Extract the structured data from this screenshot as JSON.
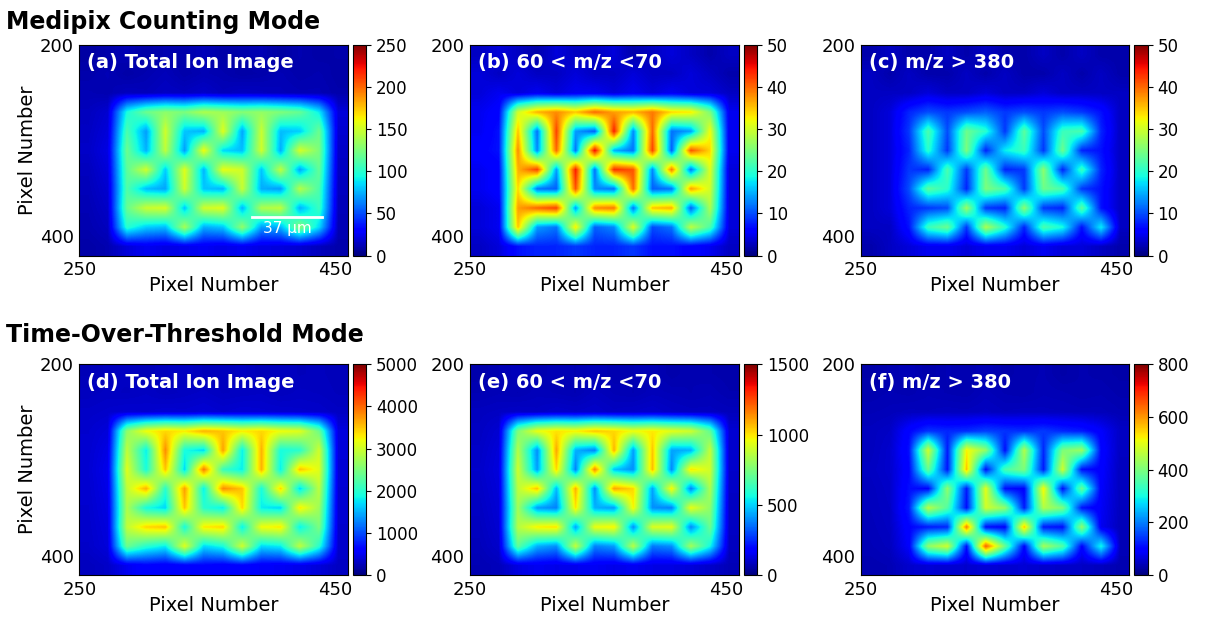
{
  "row_titles": [
    "Medipix Counting Mode",
    "Time-Over-Threshold Mode"
  ],
  "chart_data": [
    {
      "type": "heatmap",
      "title": "(a) Total Ion Image",
      "xlabel": "Pixel Number",
      "ylabel": "Pixel Number",
      "xlim": [
        250,
        460
      ],
      "ylim": [
        420,
        200
      ],
      "xticks": [
        250,
        450
      ],
      "yticks": [
        200,
        400
      ],
      "colorbar": {
        "range": [
          0,
          250
        ],
        "ticks": [
          0,
          50,
          100,
          150,
          200,
          250
        ]
      },
      "scale_bar": {
        "label": "37 µm",
        "x_start": 385,
        "x_end": 440,
        "y": 380
      },
      "cells": [
        [
          8,
          10,
          12,
          9,
          11,
          10,
          13,
          9,
          10,
          12,
          8,
          11,
          9,
          10
        ],
        [
          10,
          12,
          9,
          11,
          13,
          10,
          12,
          11,
          9,
          10,
          12,
          10,
          11,
          9
        ],
        [
          12,
          11,
          14,
          13,
          15,
          14,
          16,
          13,
          15,
          14,
          13,
          12,
          12,
          10
        ],
        [
          14,
          18,
          95,
          120,
          130,
          125,
          140,
          135,
          128,
          132,
          126,
          118,
          90,
          20
        ],
        [
          15,
          20,
          110,
          70,
          150,
          80,
          75,
          155,
          72,
          148,
          78,
          82,
          120,
          18
        ],
        [
          16,
          22,
          120,
          75,
          145,
          70,
          160,
          85,
          78,
          150,
          74,
          152,
          125,
          16
        ],
        [
          14,
          20,
          115,
          150,
          82,
          155,
          76,
          158,
          150,
          80,
          145,
          72,
          118,
          15
        ],
        [
          13,
          18,
          112,
          78,
          72,
          150,
          80,
          76,
          148,
          74,
          70,
          142,
          110,
          14
        ],
        [
          12,
          16,
          118,
          148,
          152,
          80,
          150,
          155,
          76,
          140,
          145,
          75,
          105,
          13
        ],
        [
          11,
          14,
          100,
          82,
          78,
          138,
          74,
          80,
          132,
          70,
          76,
          128,
          85,
          12
        ],
        [
          9,
          11,
          20,
          25,
          22,
          24,
          26,
          23,
          25,
          22,
          21,
          18,
          14,
          10
        ]
      ]
    },
    {
      "type": "heatmap",
      "title": "(b) 60 < m/z <70",
      "xlabel": "Pixel Number",
      "xlim": [
        250,
        460
      ],
      "ylim": [
        420,
        200
      ],
      "xticks": [
        250,
        450
      ],
      "yticks": [
        200,
        400
      ],
      "colorbar": {
        "range": [
          0,
          50
        ],
        "ticks": [
          0,
          10,
          20,
          30,
          40,
          50
        ]
      },
      "cells": [
        [
          3,
          4,
          3,
          2,
          4,
          3,
          3,
          4,
          2,
          3,
          4,
          3,
          2,
          3
        ],
        [
          4,
          3,
          4,
          3,
          3,
          4,
          3,
          3,
          4,
          3,
          3,
          4,
          3,
          2
        ],
        [
          4,
          5,
          4,
          5,
          4,
          5,
          5,
          4,
          5,
          4,
          5,
          4,
          4,
          3
        ],
        [
          5,
          6,
          30,
          36,
          38,
          35,
          40,
          37,
          36,
          39,
          34,
          33,
          25,
          5
        ],
        [
          5,
          7,
          35,
          12,
          42,
          14,
          11,
          44,
          13,
          40,
          12,
          14,
          32,
          5
        ],
        [
          6,
          7,
          38,
          13,
          40,
          12,
          45,
          15,
          12,
          42,
          11,
          41,
          34,
          5
        ],
        [
          5,
          6,
          36,
          42,
          14,
          44,
          12,
          43,
          41,
          13,
          39,
          12,
          31,
          4
        ],
        [
          5,
          6,
          34,
          12,
          11,
          41,
          13,
          12,
          40,
          11,
          12,
          37,
          30,
          4
        ],
        [
          4,
          5,
          37,
          40,
          42,
          14,
          38,
          39,
          12,
          35,
          36,
          11,
          28,
          4
        ],
        [
          4,
          5,
          35,
          14,
          12,
          33,
          11,
          13,
          31,
          10,
          12,
          29,
          22,
          4
        ],
        [
          3,
          4,
          7,
          8,
          8,
          9,
          8,
          8,
          9,
          7,
          7,
          6,
          5,
          3
        ]
      ]
    },
    {
      "type": "heatmap",
      "title": "(c) m/z > 380",
      "xlabel": "Pixel Number",
      "xlim": [
        250,
        460
      ],
      "ylim": [
        420,
        200
      ],
      "xticks": [
        250,
        450
      ],
      "yticks": [
        200,
        400
      ],
      "colorbar": {
        "range": [
          0,
          50
        ],
        "ticks": [
          0,
          10,
          20,
          30,
          40,
          50
        ]
      },
      "cells": [
        [
          2,
          3,
          2,
          2,
          3,
          2,
          3,
          2,
          2,
          3,
          2,
          3,
          2,
          2
        ],
        [
          3,
          2,
          3,
          2,
          2,
          3,
          2,
          3,
          2,
          2,
          3,
          2,
          3,
          2
        ],
        [
          3,
          3,
          3,
          4,
          3,
          3,
          4,
          3,
          3,
          4,
          3,
          3,
          3,
          3
        ],
        [
          3,
          4,
          8,
          10,
          9,
          10,
          11,
          9,
          10,
          9,
          10,
          9,
          7,
          3
        ],
        [
          3,
          4,
          9,
          22,
          10,
          24,
          20,
          9,
          23,
          10,
          21,
          22,
          8,
          3
        ],
        [
          3,
          4,
          8,
          20,
          9,
          25,
          8,
          18,
          21,
          9,
          24,
          8,
          7,
          3
        ],
        [
          3,
          4,
          9,
          8,
          22,
          9,
          24,
          8,
          9,
          26,
          8,
          21,
          8,
          3
        ],
        [
          3,
          4,
          10,
          23,
          20,
          8,
          25,
          22,
          9,
          24,
          22,
          9,
          7,
          3
        ],
        [
          3,
          4,
          8,
          9,
          10,
          27,
          9,
          8,
          26,
          9,
          8,
          23,
          7,
          3
        ],
        [
          3,
          3,
          7,
          21,
          24,
          9,
          28,
          20,
          8,
          22,
          19,
          7,
          18,
          3
        ],
        [
          2,
          3,
          4,
          5,
          5,
          4,
          5,
          5,
          4,
          5,
          4,
          4,
          3,
          2
        ]
      ]
    },
    {
      "type": "heatmap",
      "title": "(d) Total Ion Image",
      "xlabel": "Pixel Number",
      "ylabel": "Pixel Number",
      "xlim": [
        250,
        460
      ],
      "ylim": [
        420,
        200
      ],
      "xticks": [
        250,
        450
      ],
      "yticks": [
        200,
        400
      ],
      "colorbar": {
        "range": [
          0,
          5000
        ],
        "ticks": [
          0,
          1000,
          2000,
          3000,
          4000,
          5000
        ]
      },
      "cells": [
        [
          250,
          280,
          300,
          260,
          290,
          310,
          270,
          280,
          300,
          260,
          290,
          270,
          280,
          260
        ],
        [
          280,
          300,
          290,
          310,
          280,
          300,
          320,
          290,
          300,
          310,
          280,
          300,
          290,
          270
        ],
        [
          320,
          340,
          360,
          350,
          370,
          360,
          380,
          350,
          370,
          360,
          350,
          340,
          330,
          300
        ],
        [
          350,
          400,
          2600,
          3200,
          3400,
          3300,
          3600,
          3500,
          3300,
          3400,
          3200,
          3100,
          2400,
          420
        ],
        [
          360,
          450,
          2900,
          1800,
          3800,
          1900,
          1700,
          3700,
          1800,
          3600,
          1900,
          2000,
          3000,
          400
        ],
        [
          370,
          480,
          3100,
          1900,
          3500,
          1700,
          3900,
          2100,
          1800,
          3600,
          1800,
          3500,
          3100,
          380
        ],
        [
          360,
          460,
          2900,
          3600,
          2000,
          3700,
          1800,
          3800,
          3500,
          1900,
          3400,
          1700,
          2900,
          370
        ],
        [
          350,
          440,
          2800,
          1900,
          1700,
          3500,
          2000,
          1800,
          3400,
          1800,
          1700,
          3300,
          2700,
          360
        ],
        [
          340,
          420,
          2900,
          3400,
          3500,
          1900,
          3300,
          3400,
          1800,
          3200,
          3300,
          1800,
          2500,
          350
        ],
        [
          330,
          400,
          2400,
          2000,
          1800,
          3100,
          1700,
          1900,
          3000,
          1700,
          1800,
          2900,
          2000,
          340
        ],
        [
          280,
          320,
          500,
          600,
          550,
          580,
          620,
          560,
          590,
          540,
          520,
          470,
          400,
          300
        ]
      ]
    },
    {
      "type": "heatmap",
      "title": "(e) 60 < m/z <70",
      "xlabel": "Pixel Number",
      "xlim": [
        250,
        460
      ],
      "ylim": [
        420,
        200
      ],
      "xticks": [
        250,
        450
      ],
      "yticks": [
        200,
        400
      ],
      "colorbar": {
        "range": [
          0,
          1500
        ],
        "ticks": [
          0,
          500,
          1000,
          1500
        ]
      },
      "cells": [
        [
          60,
          70,
          80,
          65,
          75,
          70,
          80,
          65,
          70,
          75,
          60,
          70,
          65,
          60
        ],
        [
          70,
          75,
          70,
          80,
          75,
          70,
          85,
          75,
          70,
          80,
          75,
          70,
          75,
          65
        ],
        [
          85,
          90,
          95,
          90,
          100,
          95,
          100,
          90,
          95,
          100,
          90,
          85,
          85,
          80
        ],
        [
          90,
          110,
          750,
          950,
          1000,
          980,
          1050,
          1020,
          960,
          990,
          940,
          900,
          700,
          110
        ],
        [
          95,
          120,
          850,
          400,
          1100,
          450,
          380,
          1080,
          420,
          1050,
          430,
          450,
          880,
          100
        ],
        [
          100,
          125,
          900,
          420,
          1020,
          380,
          1150,
          480,
          400,
          1060,
          390,
          1000,
          900,
          100
        ],
        [
          95,
          120,
          860,
          1050,
          460,
          1080,
          400,
          1100,
          1020,
          430,
          980,
          380,
          840,
          95
        ],
        [
          90,
          115,
          820,
          420,
          380,
          1000,
          450,
          420,
          980,
          400,
          380,
          950,
          780,
          90
        ],
        [
          85,
          110,
          850,
          980,
          1000,
          430,
          950,
          980,
          400,
          920,
          940,
          390,
          720,
          90
        ],
        [
          80,
          100,
          700,
          450,
          400,
          880,
          380,
          420,
          860,
          370,
          400,
          820,
          560,
          85
        ],
        [
          70,
          80,
          130,
          150,
          140,
          145,
          155,
          140,
          150,
          135,
          130,
          120,
          100,
          75
        ]
      ]
    },
    {
      "type": "heatmap",
      "title": "(f) m/z > 380",
      "xlabel": "Pixel Number",
      "xlim": [
        250,
        460
      ],
      "ylim": [
        420,
        200
      ],
      "xticks": [
        250,
        450
      ],
      "yticks": [
        200,
        400
      ],
      "colorbar": {
        "range": [
          0,
          800
        ],
        "ticks": [
          0,
          200,
          400,
          600,
          800
        ]
      },
      "cells": [
        [
          30,
          35,
          40,
          32,
          38,
          35,
          40,
          33,
          36,
          38,
          30,
          35,
          33,
          30
        ],
        [
          35,
          38,
          36,
          40,
          37,
          35,
          42,
          37,
          35,
          40,
          38,
          35,
          37,
          33
        ],
        [
          40,
          42,
          45,
          44,
          46,
          45,
          48,
          44,
          46,
          45,
          44,
          42,
          42,
          38
        ],
        [
          45,
          50,
          100,
          140,
          130,
          135,
          150,
          140,
          135,
          145,
          130,
          120,
          90,
          50
        ],
        [
          45,
          55,
          110,
          480,
          120,
          520,
          420,
          110,
          450,
          130,
          400,
          430,
          100,
          48
        ],
        [
          48,
          55,
          100,
          380,
          115,
          560,
          110,
          350,
          400,
          120,
          480,
          110,
          95,
          45
        ],
        [
          45,
          52,
          110,
          100,
          420,
          120,
          500,
          110,
          100,
          520,
          110,
          380,
          90,
          45
        ],
        [
          44,
          50,
          120,
          460,
          360,
          110,
          480,
          420,
          120,
          450,
          400,
          115,
          85,
          44
        ],
        [
          42,
          48,
          100,
          120,
          130,
          620,
          110,
          100,
          560,
          120,
          110,
          420,
          80,
          42
        ],
        [
          40,
          45,
          90,
          420,
          480,
          110,
          650,
          380,
          100,
          440,
          360,
          100,
          300,
          40
        ],
        [
          35,
          38,
          55,
          60,
          58,
          56,
          62,
          58,
          60,
          55,
          52,
          50,
          45,
          35
        ]
      ]
    }
  ]
}
